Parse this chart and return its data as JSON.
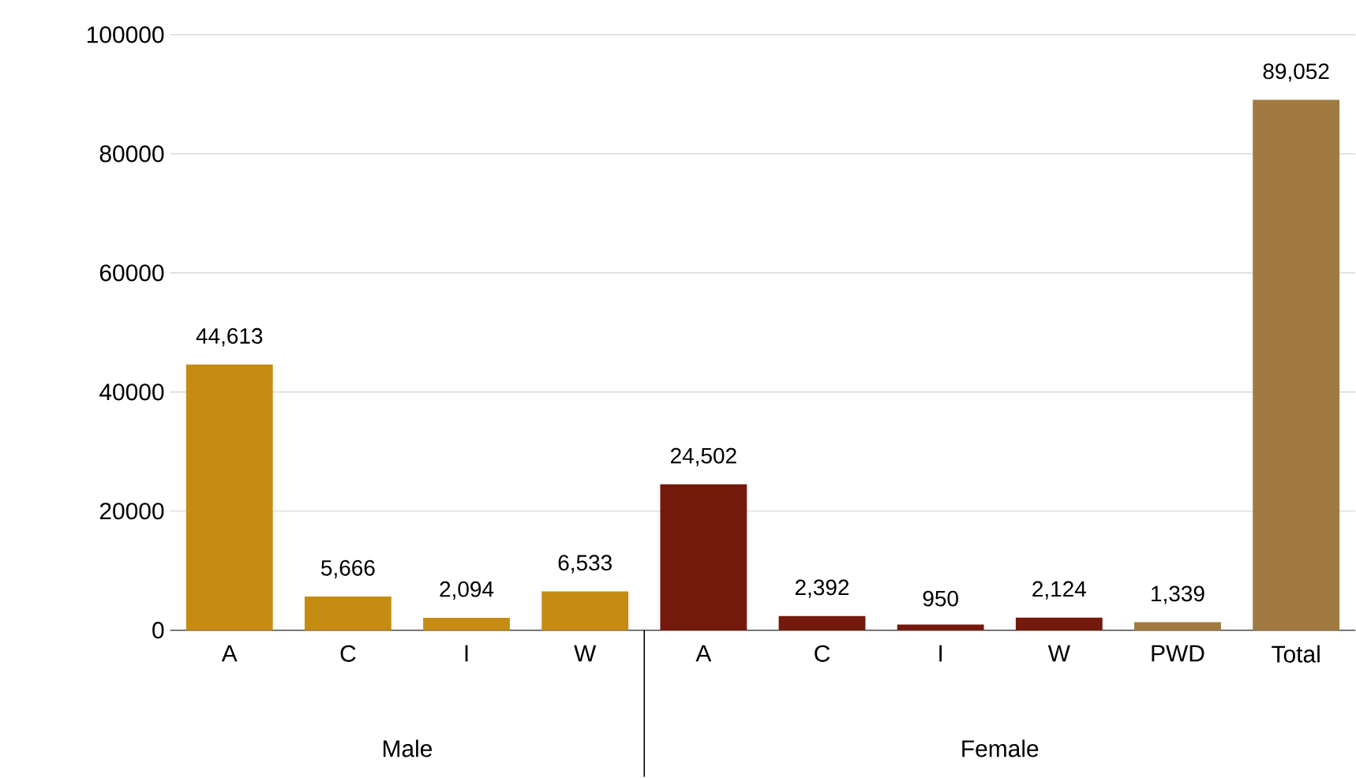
{
  "chart_data": {
    "type": "bar",
    "categories": [
      "A",
      "C",
      "I",
      "W",
      "A",
      "C",
      "I",
      "W",
      "PWD",
      "Total"
    ],
    "values": [
      44613,
      5666,
      2094,
      6533,
      24502,
      2392,
      950,
      2124,
      1339,
      89052
    ],
    "value_labels": [
      "44,613",
      "5,666",
      "2,094",
      "6,533",
      "24,502",
      "2,392",
      "950",
      "2,124",
      "1,339",
      "89,052"
    ],
    "colors": [
      "#c68b12",
      "#c68b12",
      "#c68b12",
      "#c68b12",
      "#731a0c",
      "#731a0c",
      "#731a0c",
      "#731a0c",
      "#a07a40",
      "#a07a40"
    ],
    "ylim": [
      0,
      100000
    ],
    "yticks": [
      0,
      20000,
      40000,
      60000,
      80000,
      100000
    ],
    "grid": "y",
    "annotations": [
      "Male",
      "Female"
    ]
  }
}
